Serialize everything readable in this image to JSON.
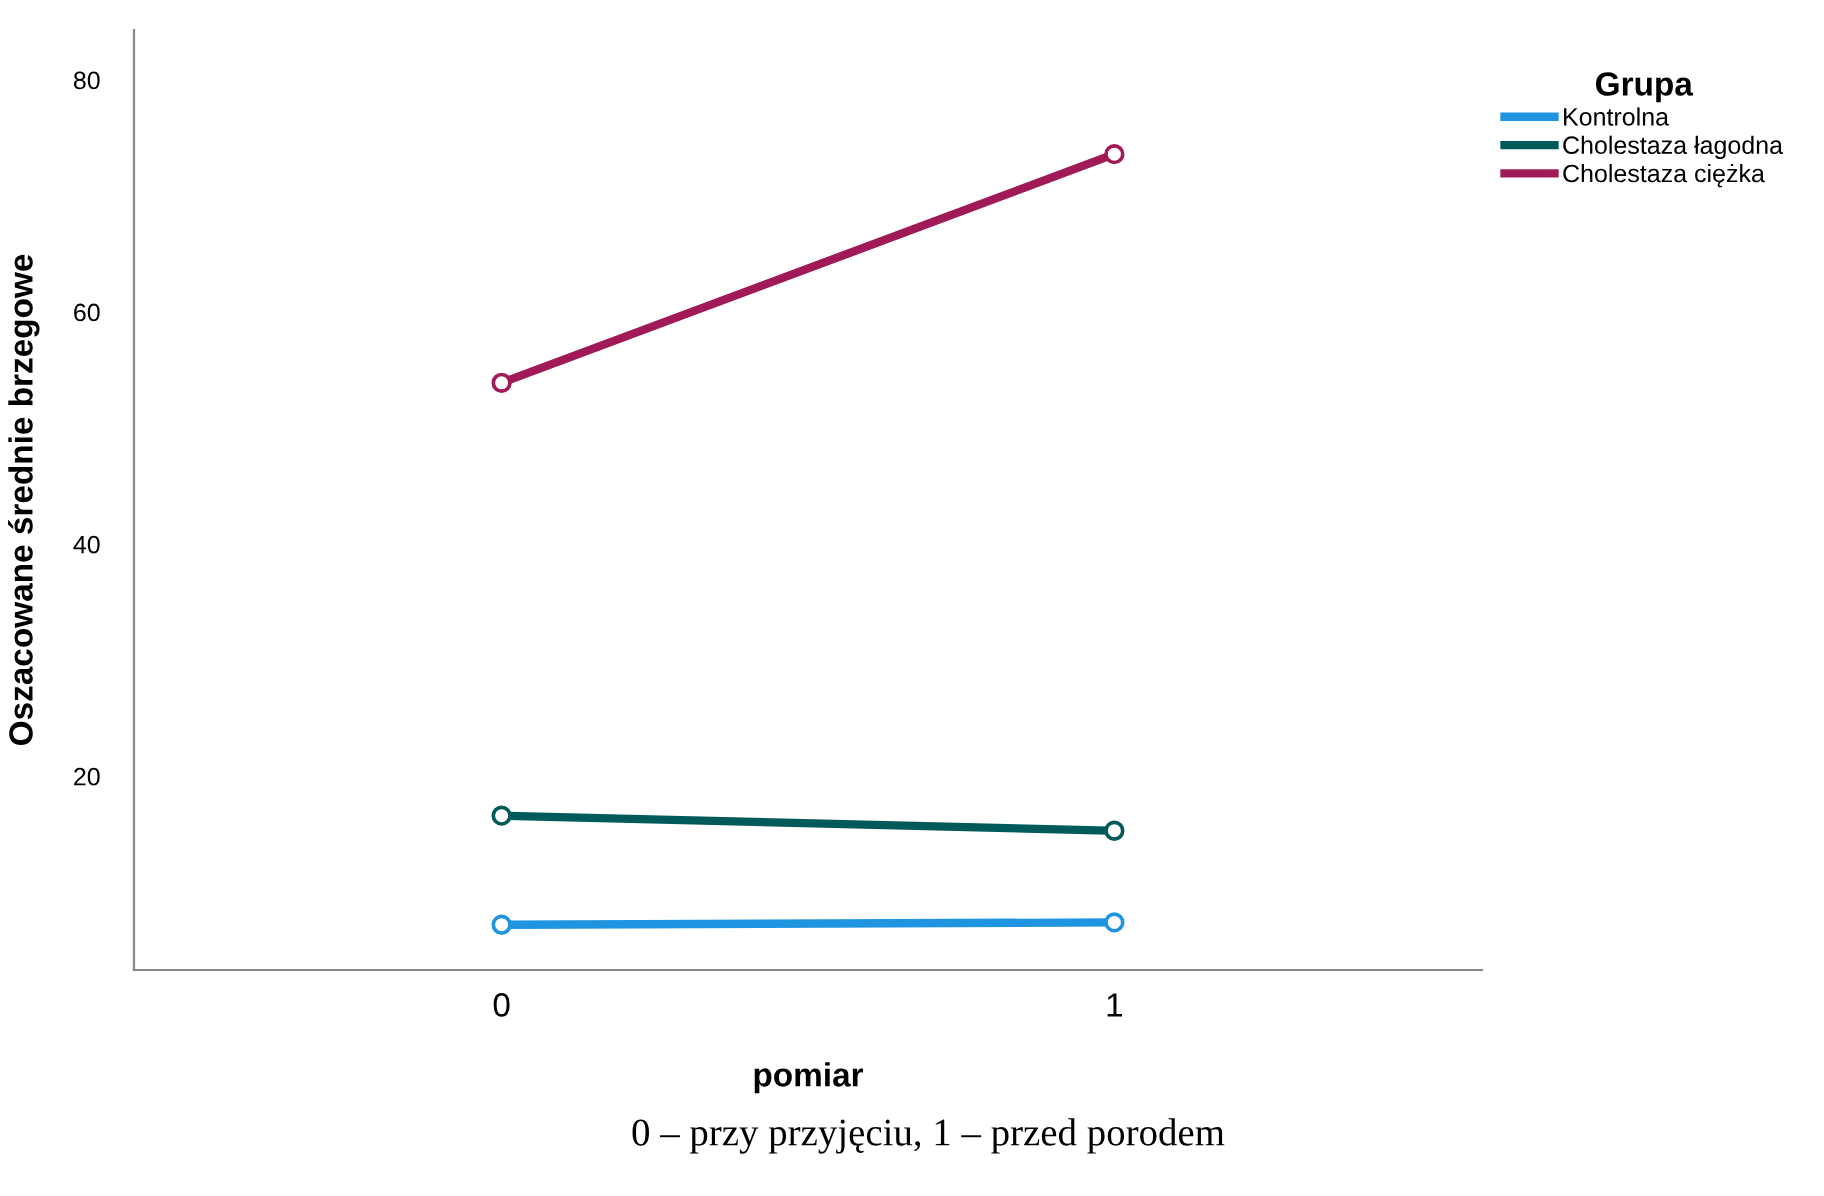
{
  "chart_data": {
    "type": "line",
    "xlabel": "pomiar",
    "ylabel": "Oszacowane średnie brzegowe",
    "legend_title": "Grupa",
    "x": [
      0,
      1
    ],
    "xlim": [
      -0.6,
      1.6
    ],
    "xticks": [
      0,
      1
    ],
    "ylim": [
      3.3,
      84.3
    ],
    "yticks": [
      20,
      40,
      60,
      80
    ],
    "series": [
      {
        "name": "Kontrolna",
        "color": "#1f94e0",
        "values": [
          7.2,
          7.4
        ]
      },
      {
        "name": "Cholestaza łagodna",
        "color": "#005a5a",
        "values": [
          16.6,
          15.3
        ]
      },
      {
        "name": "Cholestaza ciężka",
        "color": "#a01a58",
        "values": [
          53.9,
          73.6
        ]
      }
    ],
    "marker": "circle",
    "line_style": "solid",
    "grid": false,
    "legend": "top right",
    "annotations": [
      "0 – przy przyjęciu, 1 – przed porodem"
    ]
  }
}
